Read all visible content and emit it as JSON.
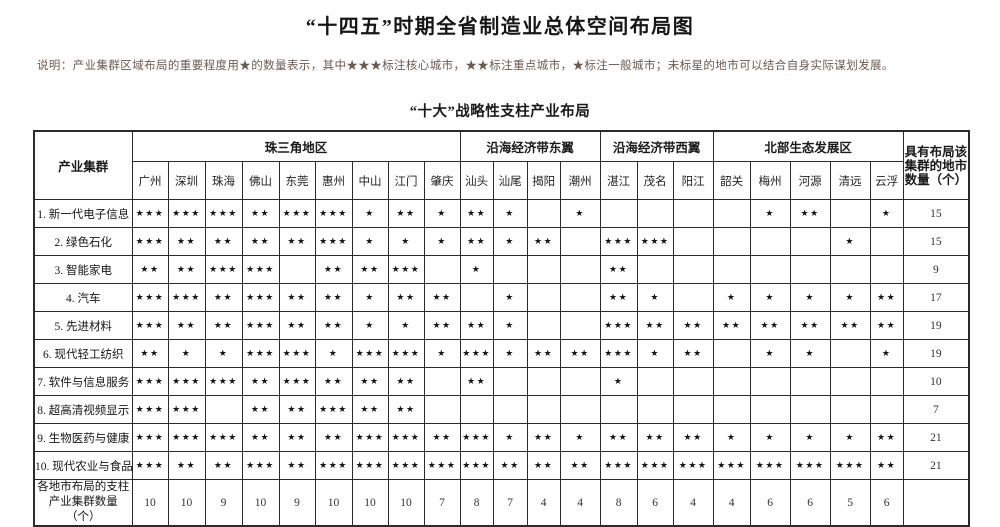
{
  "title": "“十四五”时期全省制造业总体空间布局图",
  "note": "说明：产业集群区域布局的重要程度用★的数量表示，其中★★★标注核心城市，★★标注重点城市，★标注一般城市；未标星的地市可以结合自身实际谋划发展。",
  "table_title": "“十大”战略性支柱产业布局",
  "star_char": "★",
  "colors": {
    "text": "#111111",
    "note_text": "#6b5a4e",
    "border": "#2b2b2b",
    "background": "#ffffff"
  },
  "chart_data": {
    "type": "table",
    "corner_header": "产业集群",
    "count_header": "具有布局该集群的地市数量（个）",
    "region_groups": [
      {
        "name": "珠三角地区",
        "cities": [
          "广州",
          "深圳",
          "珠海",
          "佛山",
          "东莞",
          "惠州",
          "中山",
          "江门",
          "肇庆"
        ]
      },
      {
        "name": "沿海经济带东翼",
        "cities": [
          "汕头",
          "汕尾",
          "揭阳",
          "潮州"
        ]
      },
      {
        "name": "沿海经济带西翼",
        "cities": [
          "湛江",
          "茂名",
          "阳江"
        ]
      },
      {
        "name": "北部生态发展区",
        "cities": [
          "韶关",
          "梅州",
          "河源",
          "清远",
          "云浮"
        ]
      }
    ],
    "star_legend": {
      "3": "核心城市",
      "2": "重点城市",
      "1": "一般城市",
      "0": "未标星"
    },
    "rows": [
      {
        "label": "1. 新一代电子信息",
        "stars": [
          3,
          3,
          3,
          2,
          3,
          3,
          1,
          2,
          1,
          2,
          1,
          0,
          1,
          0,
          0,
          0,
          0,
          1,
          2,
          0,
          1
        ],
        "count": 15
      },
      {
        "label": "2. 绿色石化",
        "stars": [
          3,
          2,
          2,
          2,
          2,
          3,
          1,
          1,
          1,
          2,
          1,
          2,
          0,
          3,
          3,
          0,
          0,
          0,
          0,
          1,
          0
        ],
        "count": 15
      },
      {
        "label": "3. 智能家电",
        "stars": [
          2,
          2,
          3,
          3,
          0,
          2,
          2,
          3,
          0,
          1,
          0,
          0,
          0,
          2,
          0,
          0,
          0,
          0,
          0,
          0,
          0
        ],
        "count": 9
      },
      {
        "label": "4. 汽车",
        "stars": [
          3,
          3,
          2,
          3,
          2,
          2,
          1,
          2,
          2,
          0,
          1,
          0,
          0,
          2,
          1,
          0,
          1,
          1,
          1,
          1,
          2
        ],
        "count": 17
      },
      {
        "label": "5. 先进材料",
        "stars": [
          3,
          2,
          2,
          3,
          2,
          2,
          1,
          1,
          2,
          2,
          1,
          0,
          0,
          3,
          2,
          2,
          2,
          2,
          2,
          2,
          2
        ],
        "count": 19
      },
      {
        "label": "6. 现代轻工纺织",
        "stars": [
          2,
          1,
          1,
          3,
          3,
          1,
          3,
          3,
          1,
          3,
          1,
          2,
          2,
          3,
          1,
          2,
          0,
          1,
          1,
          0,
          1
        ],
        "count": 19
      },
      {
        "label": "7. 软件与信息服务",
        "stars": [
          3,
          3,
          3,
          2,
          3,
          2,
          2,
          2,
          0,
          2,
          0,
          0,
          0,
          1,
          0,
          0,
          0,
          0,
          0,
          0,
          0
        ],
        "count": 10
      },
      {
        "label": "8. 超高清视频显示",
        "stars": [
          3,
          3,
          0,
          2,
          2,
          3,
          2,
          2,
          0,
          0,
          0,
          0,
          0,
          0,
          0,
          0,
          0,
          0,
          0,
          0,
          0
        ],
        "count": 7
      },
      {
        "label": "9. 生物医药与健康",
        "stars": [
          3,
          3,
          3,
          2,
          2,
          2,
          3,
          3,
          2,
          3,
          1,
          2,
          1,
          2,
          2,
          2,
          1,
          1,
          1,
          1,
          2
        ],
        "count": 21
      },
      {
        "label": "10. 现代农业与食品",
        "stars": [
          3,
          2,
          2,
          3,
          2,
          3,
          3,
          3,
          3,
          3,
          2,
          2,
          2,
          3,
          3,
          3,
          3,
          3,
          3,
          3,
          2
        ],
        "count": 21
      }
    ],
    "summary_row": {
      "label": "各地市布局的支柱产业集群数量（个）",
      "values": [
        10,
        10,
        9,
        10,
        9,
        10,
        10,
        10,
        7,
        8,
        7,
        4,
        4,
        8,
        6,
        4,
        4,
        6,
        6,
        5,
        6
      ],
      "count": ""
    }
  }
}
